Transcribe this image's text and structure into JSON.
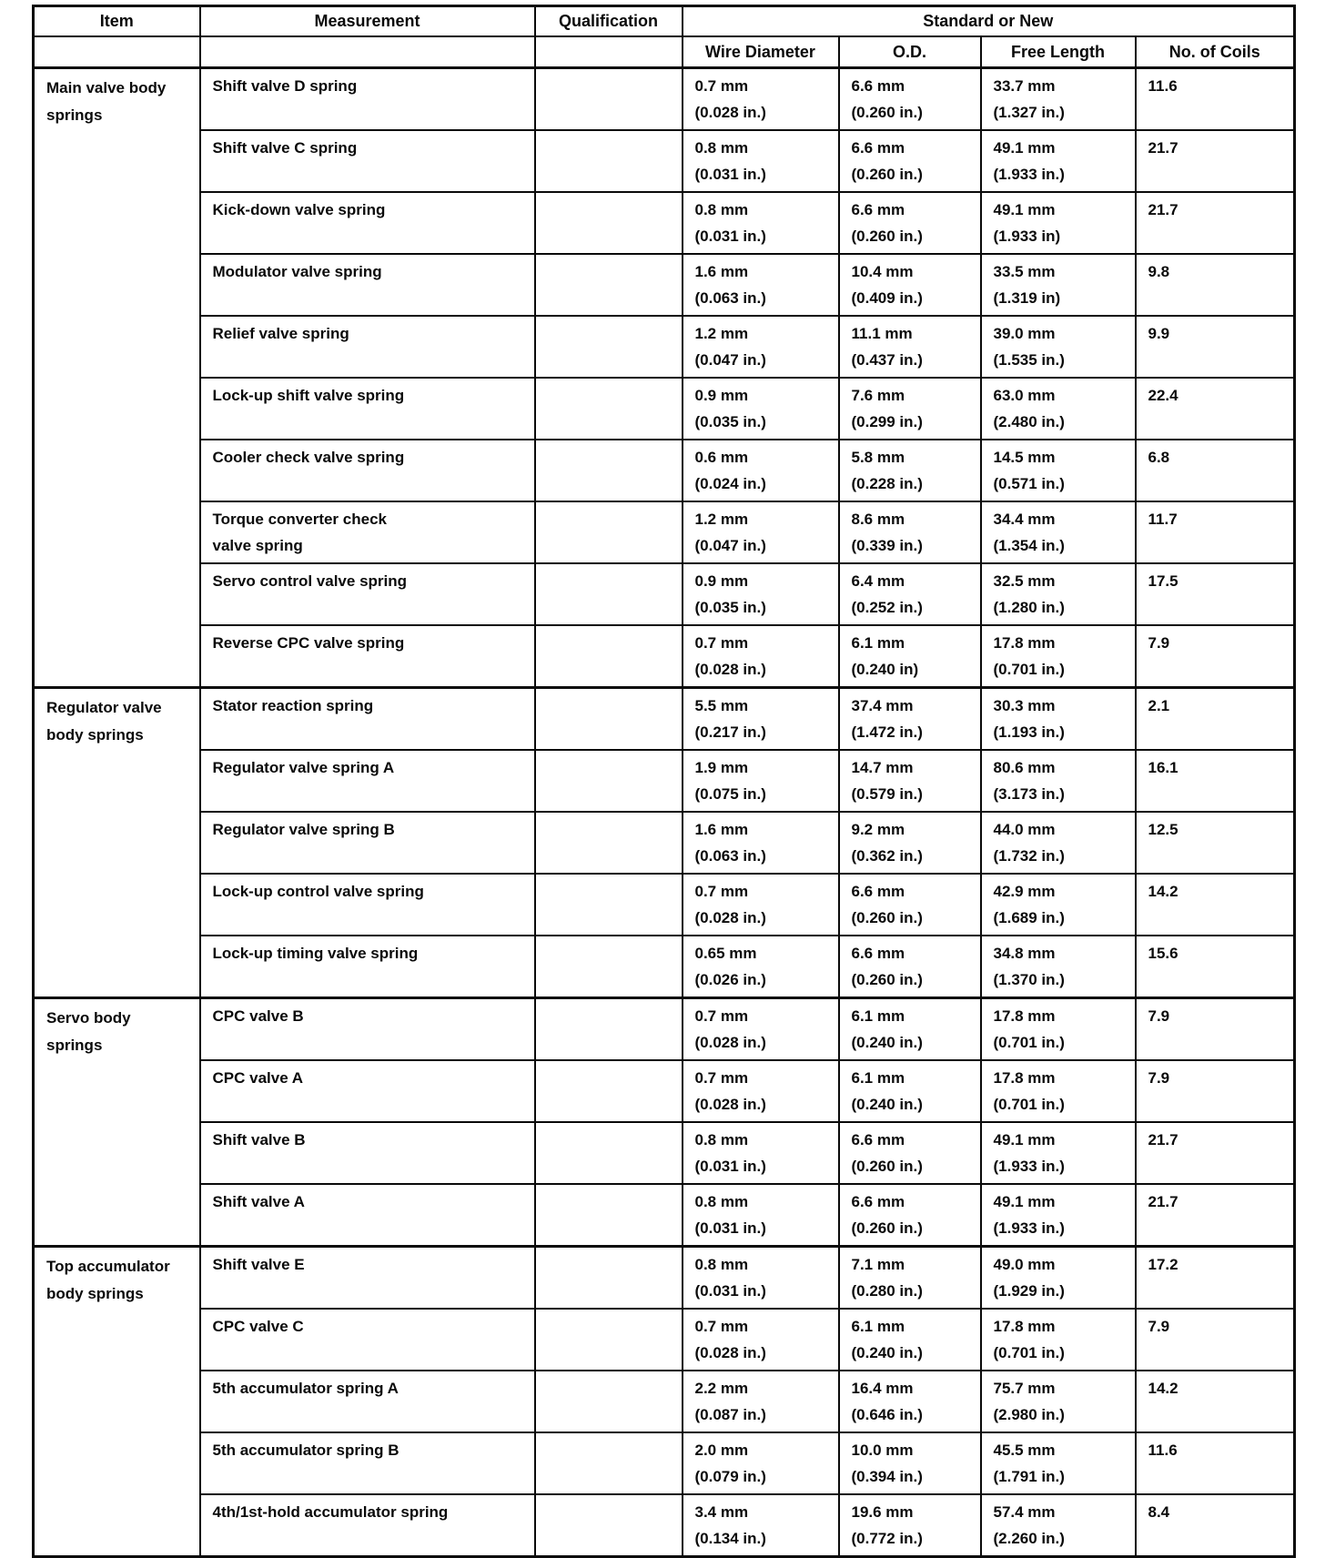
{
  "table": {
    "headers": {
      "item": "Item",
      "measurement": "Measurement",
      "qualification": "Qualification",
      "standard_or_new": "Standard or New",
      "sub": [
        "Wire Diameter",
        "O.D.",
        "Free Length",
        "No. of Coils"
      ]
    },
    "sections": [
      {
        "item": "Main valve body\nsprings",
        "rows": [
          {
            "measurement": "Shift valve D spring",
            "qualification": "",
            "wire_diameter": [
              "0.7 mm",
              "(0.028 in.)"
            ],
            "od": [
              "6.6 mm",
              "(0.260 in.)"
            ],
            "free_length": [
              "33.7 mm",
              "(1.327 in.)"
            ],
            "coils": "11.6"
          },
          {
            "measurement": "Shift valve C spring",
            "qualification": "",
            "wire_diameter": [
              "0.8 mm",
              "(0.031 in.)"
            ],
            "od": [
              "6.6 mm",
              "(0.260 in.)"
            ],
            "free_length": [
              "49.1 mm",
              "(1.933 in.)"
            ],
            "coils": "21.7"
          },
          {
            "measurement": "Kick-down valve spring",
            "qualification": "",
            "wire_diameter": [
              "0.8 mm",
              "(0.031 in.)"
            ],
            "od": [
              "6.6 mm",
              "(0.260 in.)"
            ],
            "free_length": [
              "49.1 mm",
              "(1.933 in)"
            ],
            "coils": "21.7"
          },
          {
            "measurement": "Modulator valve spring",
            "qualification": "",
            "wire_diameter": [
              "1.6 mm",
              "(0.063 in.)"
            ],
            "od": [
              "10.4 mm",
              "(0.409 in.)"
            ],
            "free_length": [
              "33.5 mm",
              "(1.319 in)"
            ],
            "coils": "9.8"
          },
          {
            "measurement": "Relief valve spring",
            "qualification": "",
            "wire_diameter": [
              "1.2 mm",
              "(0.047 in.)"
            ],
            "od": [
              "11.1 mm",
              "(0.437 in.)"
            ],
            "free_length": [
              "39.0 mm",
              "(1.535 in.)"
            ],
            "coils": "9.9"
          },
          {
            "measurement": "Lock-up shift valve spring",
            "qualification": "",
            "wire_diameter": [
              "0.9 mm",
              "(0.035 in.)"
            ],
            "od": [
              "7.6 mm",
              "(0.299 in.)"
            ],
            "free_length": [
              "63.0 mm",
              "(2.480 in.)"
            ],
            "coils": "22.4"
          },
          {
            "measurement": "Cooler check valve spring",
            "qualification": "",
            "wire_diameter": [
              "0.6 mm",
              "(0.024 in.)"
            ],
            "od": [
              "5.8 mm",
              "(0.228 in.)"
            ],
            "free_length": [
              "14.5 mm",
              "(0.571 in.)"
            ],
            "coils": "6.8"
          },
          {
            "measurement": "Torque converter check\nvalve spring",
            "qualification": "",
            "wire_diameter": [
              "1.2 mm",
              "(0.047 in.)"
            ],
            "od": [
              "8.6 mm",
              "(0.339 in.)"
            ],
            "free_length": [
              "34.4 mm",
              "(1.354 in.)"
            ],
            "coils": "11.7"
          },
          {
            "measurement": "Servo control valve spring",
            "qualification": "",
            "wire_diameter": [
              "0.9 mm",
              "(0.035 in.)"
            ],
            "od": [
              "6.4 mm",
              "(0.252 in.)"
            ],
            "free_length": [
              "32.5 mm",
              "(1.280 in.)"
            ],
            "coils": "17.5"
          },
          {
            "measurement": "Reverse CPC valve spring",
            "qualification": "",
            "wire_diameter": [
              "0.7 mm",
              "(0.028 in.)"
            ],
            "od": [
              "6.1 mm",
              "(0.240 in)"
            ],
            "free_length": [
              "17.8 mm",
              "(0.701 in.)"
            ],
            "coils": "7.9"
          }
        ]
      },
      {
        "item": "Regulator valve\nbody springs",
        "rows": [
          {
            "measurement": "Stator reaction spring",
            "qualification": "",
            "wire_diameter": [
              "5.5 mm",
              "(0.217 in.)"
            ],
            "od": [
              "37.4 mm",
              "(1.472 in.)"
            ],
            "free_length": [
              "30.3 mm",
              "(1.193 in.)"
            ],
            "coils": "2.1"
          },
          {
            "measurement": "Regulator valve spring A",
            "qualification": "",
            "wire_diameter": [
              "1.9 mm",
              "(0.075 in.)"
            ],
            "od": [
              "14.7 mm",
              "(0.579 in.)"
            ],
            "free_length": [
              "80.6 mm",
              "(3.173 in.)"
            ],
            "coils": "16.1"
          },
          {
            "measurement": "Regulator valve spring B",
            "qualification": "",
            "wire_diameter": [
              "1.6 mm",
              "(0.063 in.)"
            ],
            "od": [
              "9.2 mm",
              "(0.362 in.)"
            ],
            "free_length": [
              "44.0 mm",
              "(1.732 in.)"
            ],
            "coils": "12.5"
          },
          {
            "measurement": "Lock-up control valve spring",
            "qualification": "",
            "wire_diameter": [
              "0.7 mm",
              "(0.028 in.)"
            ],
            "od": [
              "6.6 mm",
              "(0.260 in.)"
            ],
            "free_length": [
              "42.9 mm",
              "(1.689 in.)"
            ],
            "coils": "14.2"
          },
          {
            "measurement": "Lock-up timing valve spring",
            "qualification": "",
            "wire_diameter": [
              "0.65 mm",
              "(0.026 in.)"
            ],
            "od": [
              "6.6 mm",
              "(0.260 in.)"
            ],
            "free_length": [
              "34.8 mm",
              "(1.370 in.)"
            ],
            "coils": "15.6"
          }
        ]
      },
      {
        "item": "Servo body\nsprings",
        "rows": [
          {
            "measurement": "CPC valve B",
            "qualification": "",
            "wire_diameter": [
              "0.7 mm",
              "(0.028 in.)"
            ],
            "od": [
              "6.1 mm",
              "(0.240 in.)"
            ],
            "free_length": [
              "17.8 mm",
              "(0.701 in.)"
            ],
            "coils": "7.9"
          },
          {
            "measurement": "CPC valve A",
            "qualification": "",
            "wire_diameter": [
              "0.7 mm",
              "(0.028 in.)"
            ],
            "od": [
              "6.1 mm",
              "(0.240 in.)"
            ],
            "free_length": [
              "17.8 mm",
              "(0.701 in.)"
            ],
            "coils": "7.9"
          },
          {
            "measurement": "Shift valve B",
            "qualification": "",
            "wire_diameter": [
              "0.8 mm",
              "(0.031 in.)"
            ],
            "od": [
              "6.6 mm",
              "(0.260 in.)"
            ],
            "free_length": [
              "49.1 mm",
              "(1.933 in.)"
            ],
            "coils": "21.7"
          },
          {
            "measurement": "Shift valve A",
            "qualification": "",
            "wire_diameter": [
              "0.8 mm",
              "(0.031 in.)"
            ],
            "od": [
              "6.6 mm",
              "(0.260 in.)"
            ],
            "free_length": [
              "49.1 mm",
              "(1.933 in.)"
            ],
            "coils": "21.7"
          }
        ]
      },
      {
        "item": "Top accumulator\nbody springs",
        "rows": [
          {
            "measurement": "Shift valve E",
            "qualification": "",
            "wire_diameter": [
              "0.8 mm",
              "(0.031 in.)"
            ],
            "od": [
              "7.1 mm",
              "(0.280 in.)"
            ],
            "free_length": [
              "49.0 mm",
              "(1.929 in.)"
            ],
            "coils": "17.2"
          },
          {
            "measurement": "CPC valve C",
            "qualification": "",
            "wire_diameter": [
              "0.7 mm",
              "(0.028 in.)"
            ],
            "od": [
              "6.1 mm",
              "(0.240 in.)"
            ],
            "free_length": [
              "17.8 mm",
              "(0.701 in.)"
            ],
            "coils": "7.9"
          },
          {
            "measurement": "5th accumulator spring A",
            "qualification": "",
            "wire_diameter": [
              "2.2 mm",
              "(0.087 in.)"
            ],
            "od": [
              "16.4 mm",
              "(0.646 in.)"
            ],
            "free_length": [
              "75.7 mm",
              "(2.980 in.)"
            ],
            "coils": "14.2"
          },
          {
            "measurement": "5th accumulator spring B",
            "qualification": "",
            "wire_diameter": [
              "2.0 mm",
              "(0.079 in.)"
            ],
            "od": [
              "10.0 mm",
              "(0.394 in.)"
            ],
            "free_length": [
              "45.5 mm",
              "(1.791 in.)"
            ],
            "coils": "11.6"
          },
          {
            "measurement": "4th/1st-hold accumulator spring",
            "qualification": "",
            "wire_diameter": [
              "3.4 mm",
              "(0.134 in.)"
            ],
            "od": [
              "19.6 mm",
              "(0.772 in.)"
            ],
            "free_length": [
              "57.4 mm",
              "(2.260 in.)"
            ],
            "coils": "8.4"
          }
        ]
      }
    ]
  }
}
